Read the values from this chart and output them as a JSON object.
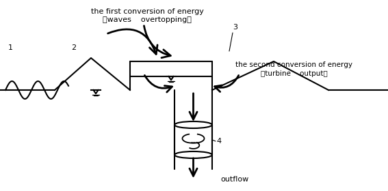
{
  "bg_color": "#ffffff",
  "line_color": "#000000",
  "figsize": [
    5.67,
    2.8
  ],
  "dpi": 100,
  "labels": {
    "label1": "1",
    "label2": "2",
    "label3": "3",
    "label4": "4",
    "text_top1": "the first conversion of energy",
    "text_top2": "（waves    overtopping）",
    "text_second1": "the second conversion of energy",
    "text_second2": "（turbine    output）",
    "outflow": "outflow"
  }
}
